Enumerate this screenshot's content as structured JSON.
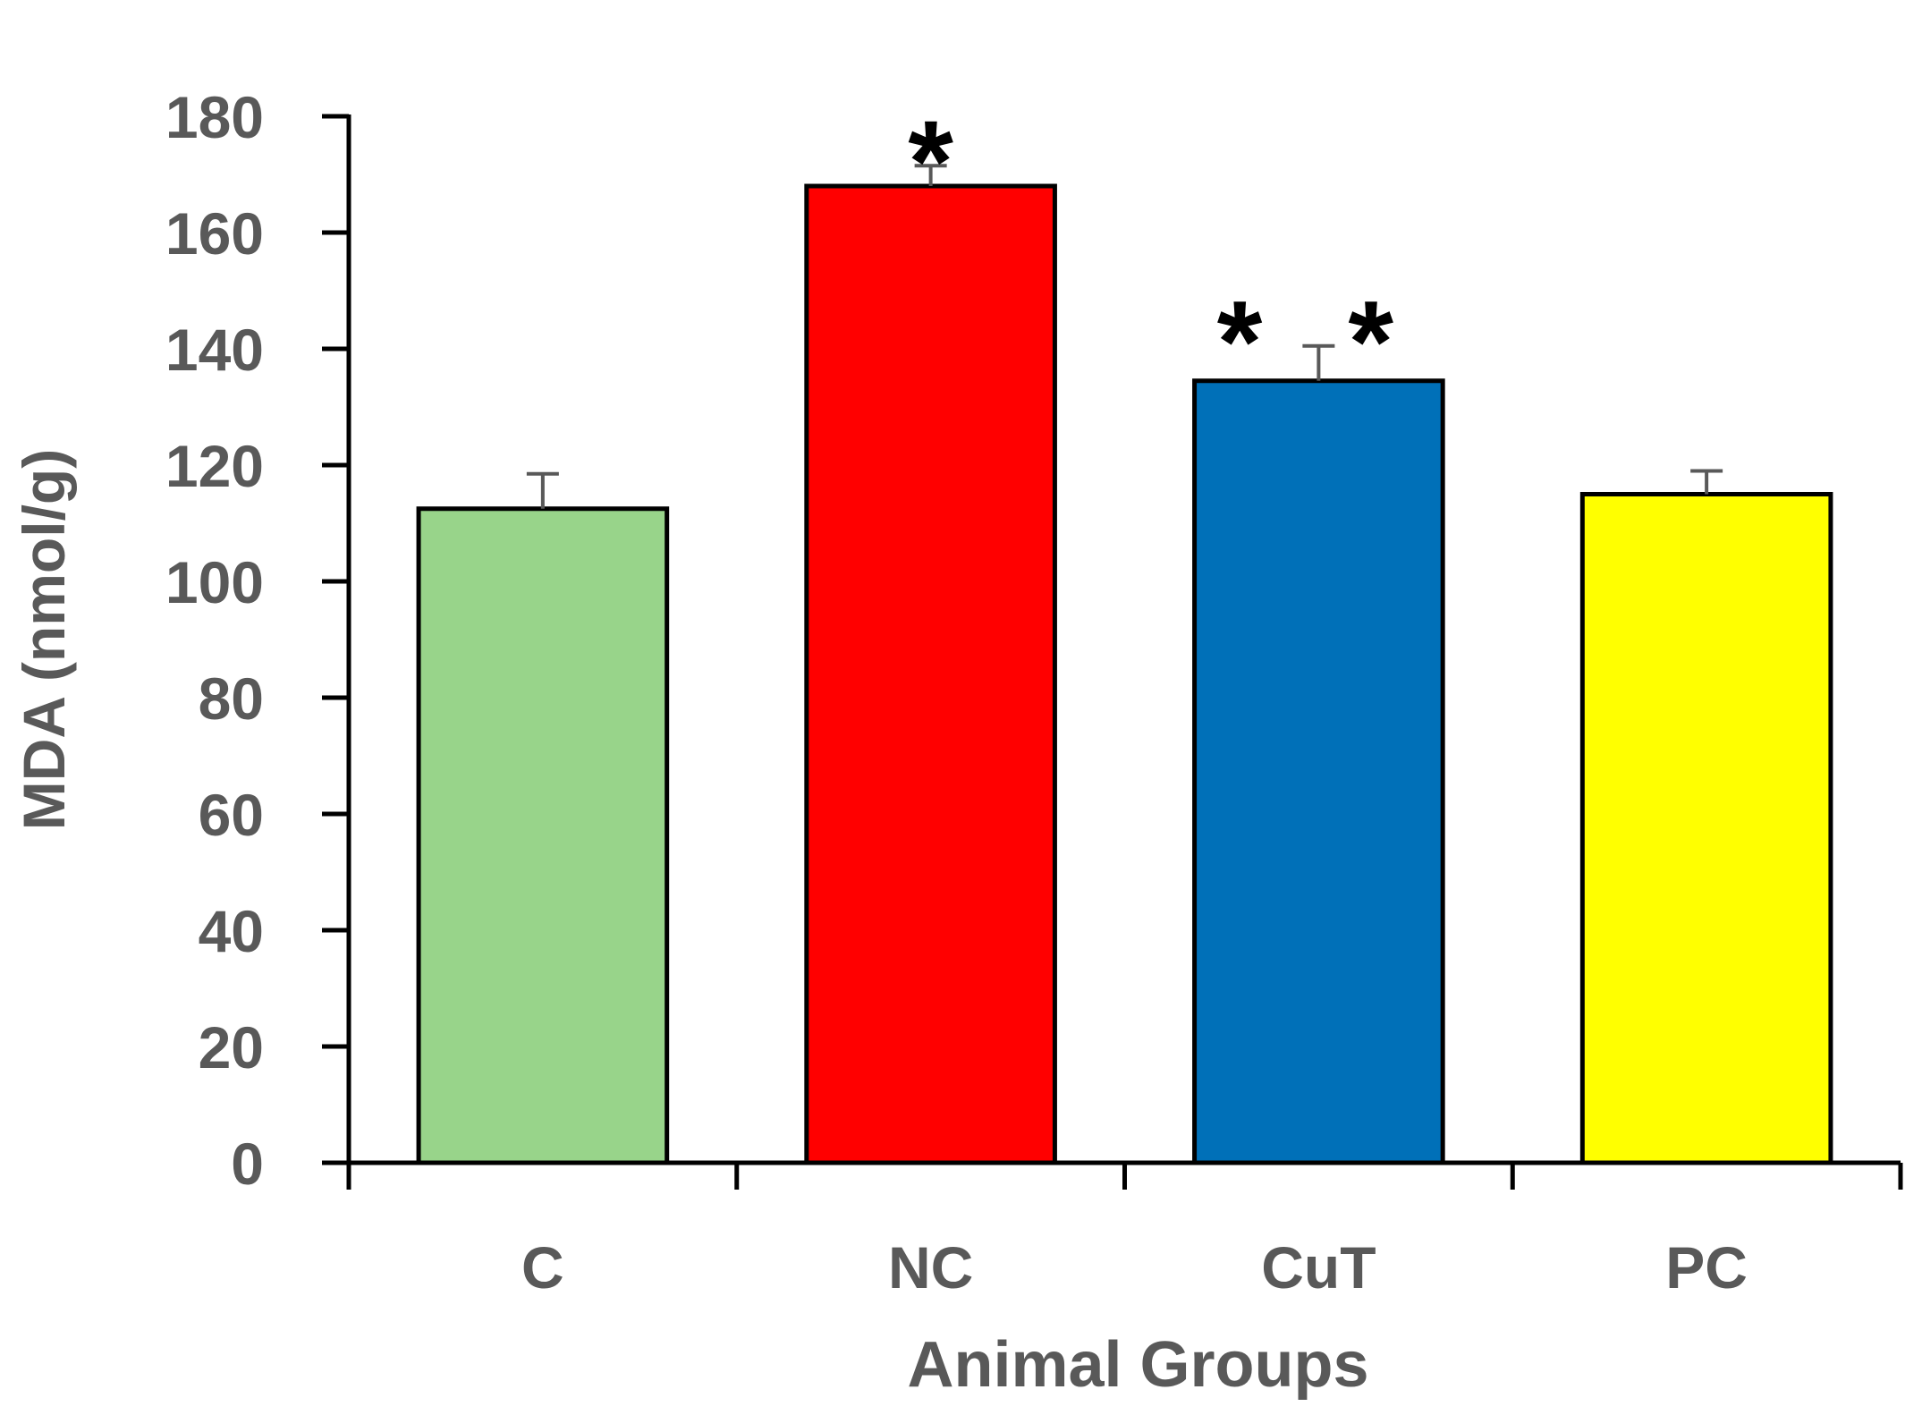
{
  "chart_data": {
    "type": "bar",
    "title": "",
    "xlabel": "Animal Groups",
    "ylabel": "MDA (nmol/g)",
    "categories": [
      "C",
      "NC",
      "CuT",
      "PC"
    ],
    "values": [
      112.5,
      168,
      134.5,
      115
    ],
    "errors": [
      6,
      3.5,
      6,
      4
    ],
    "colors": [
      "#98D48A",
      "#FF0000",
      "#0070B8",
      "#FFFF00"
    ],
    "annotations": [
      "",
      "*",
      "**",
      ""
    ],
    "ylim": [
      0,
      180
    ],
    "yticks": [
      0,
      20,
      40,
      60,
      80,
      100,
      120,
      140,
      160,
      180
    ],
    "grid": false,
    "legend": "none"
  }
}
